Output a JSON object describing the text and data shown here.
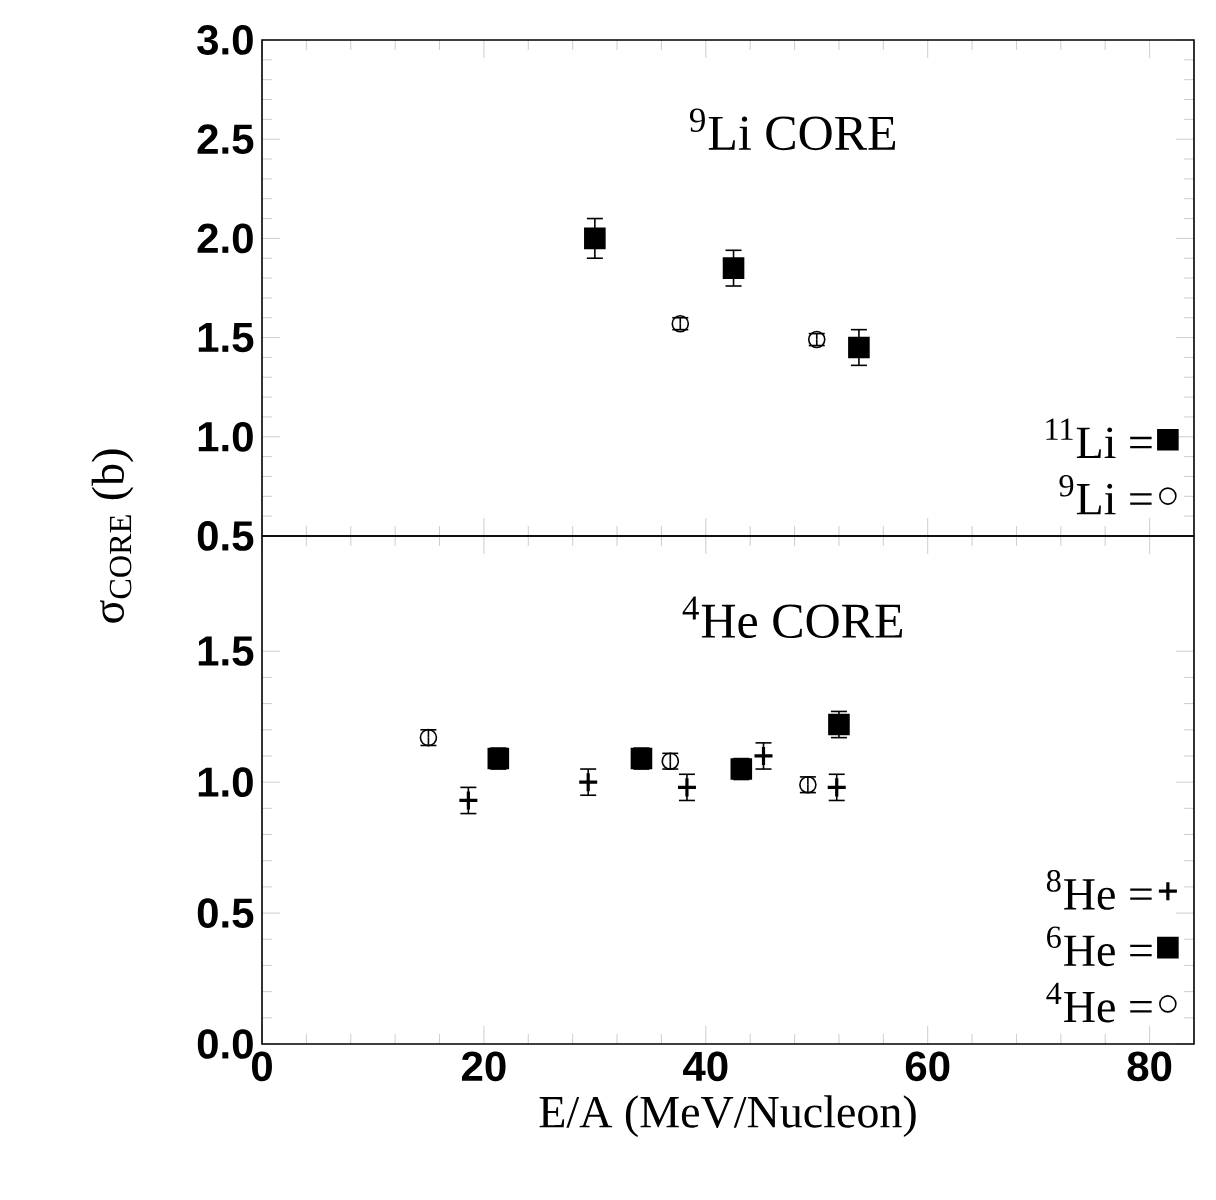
{
  "chart_data": [
    {
      "type": "scatter",
      "annotations": [
        "$^{9}$Li CORE"
      ],
      "xlim": [
        0,
        84
      ],
      "xticks": [
        0,
        20,
        40,
        60,
        80
      ],
      "ylim": [
        0.5,
        3.0
      ],
      "yticks": [
        {
          "value": 0.5,
          "label": "0.5"
        },
        {
          "value": 1,
          "label": "1.0"
        },
        {
          "value": 1.5,
          "label": "1.5"
        },
        {
          "value": 2,
          "label": "2.0"
        },
        {
          "value": 2.5,
          "label": "2.5"
        },
        {
          "value": 3,
          "label": "3.0"
        }
      ],
      "tick_labels": "y",
      "legend": "bottom right",
      "series": [
        {
          "name": "$^{11}$Li =",
          "color": "#000000",
          "marker": "square",
          "x": [
            30,
            42.5,
            53.8
          ],
          "values": [
            2.0,
            1.85,
            1.45
          ],
          "errors": [
            0.1,
            0.09,
            0.09
          ]
        },
        {
          "name": "$^{9}$Li =",
          "color": "#000000",
          "marker": "circle",
          "x": [
            37.7,
            50
          ],
          "values": [
            1.57,
            1.49
          ],
          "errors": [
            0.03,
            0.03
          ]
        }
      ]
    },
    {
      "type": "scatter",
      "annotations": [
        "$^{4}$He CORE"
      ],
      "xlabel": "E/A (MeV/Nucleon)",
      "ylabel": "σ$_{CORE}$ (b)",
      "xlim": [
        0,
        84
      ],
      "xticks": [
        0,
        20,
        40,
        60,
        80
      ],
      "ylim": [
        0,
        1.94
      ],
      "yticks": [
        {
          "value": 0,
          "label": "0.0"
        },
        {
          "value": 0.5,
          "label": "0.5"
        },
        {
          "value": 1,
          "label": "1.0"
        },
        {
          "value": 1.5,
          "label": "1.5"
        }
      ],
      "legend": "bottom right",
      "series": [
        {
          "name": "$^{8}$He =",
          "color": "#000000",
          "marker": "cross",
          "x": [
            18.6,
            29.4,
            38.3,
            45.2,
            51.8
          ],
          "values": [
            0.93,
            1.0,
            0.98,
            1.1,
            0.98
          ],
          "errors": [
            0.05,
            0.05,
            0.05,
            0.05,
            0.05
          ]
        },
        {
          "name": "$^{6}$He =",
          "color": "#000000",
          "marker": "square",
          "x": [
            21.3,
            34.2,
            43.2,
            52.0
          ],
          "values": [
            1.09,
            1.09,
            1.05,
            1.22
          ],
          "errors": [
            0.04,
            0.04,
            0.04,
            0.05
          ]
        },
        {
          "name": "$^{4}$He =",
          "color": "#000000",
          "marker": "circle",
          "x": [
            15.0,
            36.8,
            49.2
          ],
          "values": [
            1.17,
            1.08,
            0.99
          ],
          "errors": [
            0.03,
            0.03,
            0.03
          ]
        }
      ]
    }
  ]
}
